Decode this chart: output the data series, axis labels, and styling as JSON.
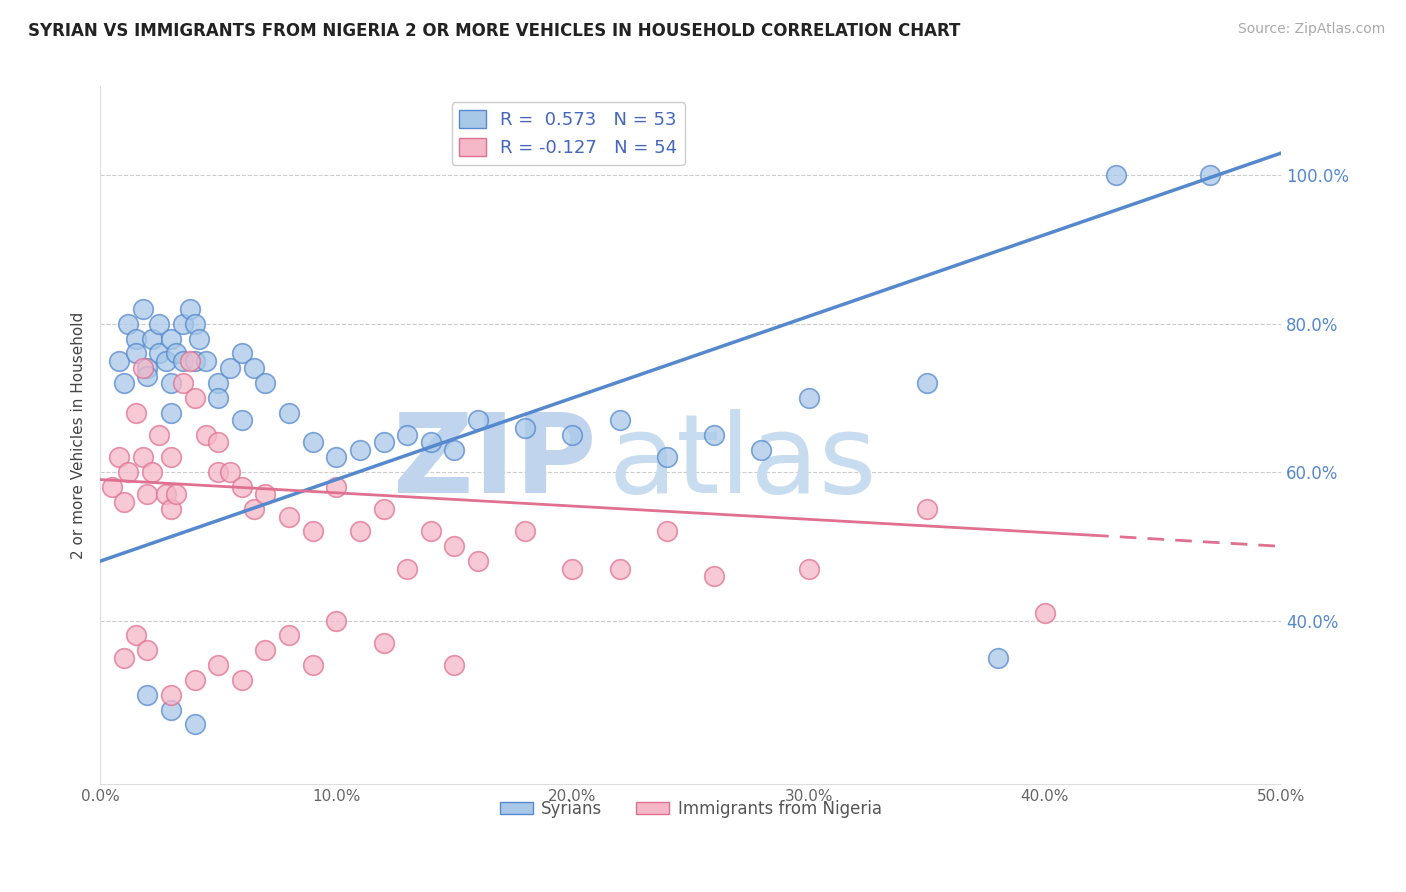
{
  "title": "SYRIAN VS IMMIGRANTS FROM NIGERIA 2 OR MORE VEHICLES IN HOUSEHOLD CORRELATION CHART",
  "source": "Source: ZipAtlas.com",
  "xlabel_ticks": [
    "0.0%",
    "10.0%",
    "20.0%",
    "30.0%",
    "40.0%",
    "50.0%"
  ],
  "xlabel_vals": [
    0.0,
    10.0,
    20.0,
    30.0,
    40.0,
    50.0
  ],
  "ylabel_ticks": [
    "40.0%",
    "60.0%",
    "80.0%",
    "100.0%"
  ],
  "ylabel_vals": [
    40.0,
    60.0,
    80.0,
    100.0
  ],
  "ylabel_label": "2 or more Vehicles in Household",
  "legend_blue_label": "Syrians",
  "legend_pink_label": "Immigrants from Nigeria",
  "R_blue": 0.573,
  "N_blue": 53,
  "R_pink": -0.127,
  "N_pink": 54,
  "blue_color": "#a8c8e8",
  "pink_color": "#f4b8c8",
  "blue_line_color": "#5588cc",
  "pink_line_color": "#e07090",
  "legend_text_color": "#4466bb",
  "tick_color": "#5588cc",
  "watermark_zip_color": "#c0d4ee",
  "watermark_atlas_color": "#c8dcf0",
  "xmin": 0.0,
  "xmax": 50.0,
  "ymin": 18.0,
  "ymax": 112.0,
  "blue_line_x0": 0.0,
  "blue_line_y0": 48.0,
  "blue_line_x1": 50.0,
  "blue_line_y1": 103.0,
  "pink_line_x0": 0.0,
  "pink_line_y0": 59.0,
  "pink_line_x1": 42.0,
  "pink_line_y1": 51.5,
  "pink_dash_x0": 42.0,
  "pink_dash_y0": 51.5,
  "pink_dash_x1": 50.0,
  "pink_dash_y1": 50.0,
  "blue_scatter_x": [
    0.8,
    1.0,
    1.2,
    1.5,
    1.5,
    1.8,
    2.0,
    2.0,
    2.2,
    2.5,
    2.5,
    2.8,
    3.0,
    3.0,
    3.0,
    3.2,
    3.5,
    3.5,
    3.8,
    4.0,
    4.0,
    4.2,
    4.5,
    5.0,
    5.5,
    6.0,
    6.5,
    7.0,
    8.0,
    9.0,
    10.0,
    11.0,
    12.0,
    13.0,
    14.0,
    15.0,
    16.0,
    18.0,
    20.0,
    22.0,
    24.0,
    26.0,
    28.0,
    30.0,
    35.0,
    38.0,
    43.0,
    47.0,
    2.0,
    3.0,
    4.0,
    5.0,
    6.0
  ],
  "blue_scatter_y": [
    75,
    72,
    80,
    78,
    76,
    82,
    74,
    73,
    78,
    76,
    80,
    75,
    78,
    72,
    68,
    76,
    80,
    75,
    82,
    75,
    80,
    78,
    75,
    72,
    74,
    76,
    74,
    72,
    68,
    64,
    62,
    63,
    64,
    65,
    64,
    63,
    67,
    66,
    65,
    67,
    62,
    65,
    63,
    70,
    72,
    35,
    100,
    100,
    30,
    28,
    26,
    70,
    67
  ],
  "pink_scatter_x": [
    0.5,
    0.8,
    1.0,
    1.2,
    1.5,
    1.8,
    1.8,
    2.0,
    2.2,
    2.5,
    2.8,
    3.0,
    3.0,
    3.2,
    3.5,
    3.8,
    4.0,
    4.5,
    5.0,
    5.0,
    5.5,
    6.0,
    6.5,
    7.0,
    8.0,
    9.0,
    10.0,
    11.0,
    12.0,
    13.0,
    14.0,
    15.0,
    16.0,
    18.0,
    20.0,
    22.0,
    24.0,
    26.0,
    30.0,
    35.0,
    1.0,
    1.5,
    2.0,
    3.0,
    4.0,
    5.0,
    6.0,
    7.0,
    8.0,
    9.0,
    10.0,
    12.0,
    15.0,
    40.0
  ],
  "pink_scatter_y": [
    58,
    62,
    56,
    60,
    68,
    62,
    74,
    57,
    60,
    65,
    57,
    62,
    55,
    57,
    72,
    75,
    70,
    65,
    64,
    60,
    60,
    58,
    55,
    57,
    54,
    52,
    58,
    52,
    55,
    47,
    52,
    50,
    48,
    52,
    47,
    47,
    52,
    46,
    47,
    55,
    35,
    38,
    36,
    30,
    32,
    34,
    32,
    36,
    38,
    34,
    40,
    37,
    34,
    41
  ]
}
